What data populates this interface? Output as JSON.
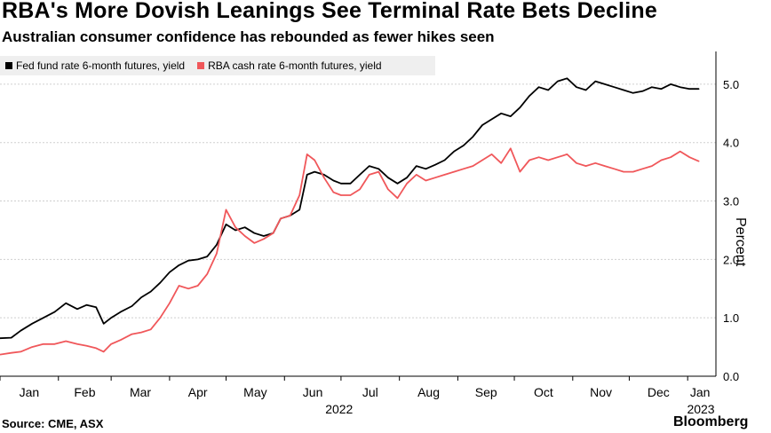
{
  "header": {
    "title": "RBA's More Dovish Leanings See Terminal Rate Bets Decline",
    "subtitle": "Australian consumer confidence has rebounded as fewer hikes seen"
  },
  "footer": {
    "source": "Source: CME, ASX",
    "brand": "Bloomberg"
  },
  "chart_data": {
    "type": "line",
    "title": "RBA's More Dovish Leanings See Terminal Rate Bets Decline",
    "subtitle": "Australian consumer confidence has rebounded as fewer hikes seen",
    "ylabel": "Percent",
    "xlabel": "2022",
    "ylim": [
      0,
      5.5
    ],
    "yticks": [
      0.0,
      1.0,
      2.0,
      3.0,
      4.0,
      5.0
    ],
    "ytick_labels": [
      "0.0",
      "1.0",
      "2.0",
      "3.0",
      "4.0",
      "5.0"
    ],
    "x_domain": [
      "2022-01-01",
      "2023-01-16"
    ],
    "xticks": [
      {
        "date": "2022-01-01",
        "label": "Jan"
      },
      {
        "date": "2022-02-01",
        "label": "Feb"
      },
      {
        "date": "2022-03-01",
        "label": "Mar"
      },
      {
        "date": "2022-04-01",
        "label": "Apr"
      },
      {
        "date": "2022-05-01",
        "label": "May"
      },
      {
        "date": "2022-06-01",
        "label": "Jun"
      },
      {
        "date": "2022-07-01",
        "label": "Jul"
      },
      {
        "date": "2022-08-01",
        "label": "Aug"
      },
      {
        "date": "2022-09-01",
        "label": "Sep"
      },
      {
        "date": "2022-10-01",
        "label": "Oct"
      },
      {
        "date": "2022-11-01",
        "label": "Nov"
      },
      {
        "date": "2022-12-01",
        "label": "Dec"
      },
      {
        "date": "2023-01-01",
        "label": "Jan"
      }
    ],
    "year_labels": [
      "2022",
      "2023"
    ],
    "grid": true,
    "legend_position": "top-left",
    "series": [
      {
        "name": "Fed fund rate 6-month futures, yield",
        "color": "#000000",
        "points": [
          [
            "2022-01-01",
            0.65
          ],
          [
            "2022-01-07",
            0.66
          ],
          [
            "2022-01-12",
            0.78
          ],
          [
            "2022-01-18",
            0.9
          ],
          [
            "2022-01-24",
            1.0
          ],
          [
            "2022-01-30",
            1.1
          ],
          [
            "2022-02-05",
            1.25
          ],
          [
            "2022-02-11",
            1.15
          ],
          [
            "2022-02-16",
            1.22
          ],
          [
            "2022-02-21",
            1.18
          ],
          [
            "2022-02-25",
            0.9
          ],
          [
            "2022-03-01",
            1.0
          ],
          [
            "2022-03-06",
            1.1
          ],
          [
            "2022-03-12",
            1.2
          ],
          [
            "2022-03-17",
            1.35
          ],
          [
            "2022-03-22",
            1.45
          ],
          [
            "2022-03-27",
            1.6
          ],
          [
            "2022-04-01",
            1.78
          ],
          [
            "2022-04-06",
            1.9
          ],
          [
            "2022-04-11",
            1.98
          ],
          [
            "2022-04-16",
            2.0
          ],
          [
            "2022-04-21",
            2.05
          ],
          [
            "2022-04-26",
            2.25
          ],
          [
            "2022-05-01",
            2.6
          ],
          [
            "2022-05-06",
            2.5
          ],
          [
            "2022-05-11",
            2.55
          ],
          [
            "2022-05-16",
            2.45
          ],
          [
            "2022-05-21",
            2.4
          ],
          [
            "2022-05-26",
            2.45
          ],
          [
            "2022-05-30",
            2.7
          ],
          [
            "2022-06-04",
            2.75
          ],
          [
            "2022-06-09",
            2.85
          ],
          [
            "2022-06-13",
            3.45
          ],
          [
            "2022-06-17",
            3.5
          ],
          [
            "2022-06-22",
            3.45
          ],
          [
            "2022-06-27",
            3.35
          ],
          [
            "2022-07-01",
            3.3
          ],
          [
            "2022-07-06",
            3.3
          ],
          [
            "2022-07-11",
            3.45
          ],
          [
            "2022-07-16",
            3.6
          ],
          [
            "2022-07-21",
            3.55
          ],
          [
            "2022-07-26",
            3.4
          ],
          [
            "2022-07-31",
            3.3
          ],
          [
            "2022-08-05",
            3.4
          ],
          [
            "2022-08-10",
            3.6
          ],
          [
            "2022-08-15",
            3.55
          ],
          [
            "2022-08-20",
            3.62
          ],
          [
            "2022-08-25",
            3.7
          ],
          [
            "2022-08-30",
            3.85
          ],
          [
            "2022-09-04",
            3.95
          ],
          [
            "2022-09-09",
            4.1
          ],
          [
            "2022-09-14",
            4.3
          ],
          [
            "2022-09-19",
            4.4
          ],
          [
            "2022-09-24",
            4.5
          ],
          [
            "2022-09-29",
            4.45
          ],
          [
            "2022-10-04",
            4.6
          ],
          [
            "2022-10-09",
            4.8
          ],
          [
            "2022-10-14",
            4.95
          ],
          [
            "2022-10-19",
            4.9
          ],
          [
            "2022-10-24",
            5.05
          ],
          [
            "2022-10-29",
            5.1
          ],
          [
            "2022-11-03",
            4.95
          ],
          [
            "2022-11-08",
            4.9
          ],
          [
            "2022-11-13",
            5.05
          ],
          [
            "2022-11-18",
            5.0
          ],
          [
            "2022-11-23",
            4.95
          ],
          [
            "2022-11-28",
            4.9
          ],
          [
            "2022-12-03",
            4.85
          ],
          [
            "2022-12-08",
            4.88
          ],
          [
            "2022-12-13",
            4.95
          ],
          [
            "2022-12-18",
            4.92
          ],
          [
            "2022-12-23",
            5.0
          ],
          [
            "2022-12-28",
            4.95
          ],
          [
            "2023-01-02",
            4.92
          ],
          [
            "2023-01-07",
            4.92
          ]
        ]
      },
      {
        "name": "RBA cash rate 6-month futures, yield",
        "color": "#f0575a",
        "points": [
          [
            "2022-01-01",
            0.37
          ],
          [
            "2022-01-07",
            0.4
          ],
          [
            "2022-01-12",
            0.42
          ],
          [
            "2022-01-18",
            0.5
          ],
          [
            "2022-01-24",
            0.55
          ],
          [
            "2022-01-30",
            0.55
          ],
          [
            "2022-02-05",
            0.6
          ],
          [
            "2022-02-11",
            0.55
          ],
          [
            "2022-02-16",
            0.52
          ],
          [
            "2022-02-21",
            0.48
          ],
          [
            "2022-02-25",
            0.42
          ],
          [
            "2022-03-01",
            0.55
          ],
          [
            "2022-03-06",
            0.62
          ],
          [
            "2022-03-12",
            0.72
          ],
          [
            "2022-03-17",
            0.75
          ],
          [
            "2022-03-22",
            0.8
          ],
          [
            "2022-03-27",
            1.0
          ],
          [
            "2022-04-01",
            1.25
          ],
          [
            "2022-04-06",
            1.55
          ],
          [
            "2022-04-11",
            1.5
          ],
          [
            "2022-04-16",
            1.55
          ],
          [
            "2022-04-21",
            1.75
          ],
          [
            "2022-04-26",
            2.1
          ],
          [
            "2022-05-01",
            2.85
          ],
          [
            "2022-05-06",
            2.55
          ],
          [
            "2022-05-11",
            2.4
          ],
          [
            "2022-05-16",
            2.28
          ],
          [
            "2022-05-21",
            2.35
          ],
          [
            "2022-05-26",
            2.45
          ],
          [
            "2022-05-30",
            2.7
          ],
          [
            "2022-06-04",
            2.75
          ],
          [
            "2022-06-09",
            3.1
          ],
          [
            "2022-06-13",
            3.8
          ],
          [
            "2022-06-17",
            3.7
          ],
          [
            "2022-06-22",
            3.4
          ],
          [
            "2022-06-27",
            3.15
          ],
          [
            "2022-07-01",
            3.1
          ],
          [
            "2022-07-06",
            3.1
          ],
          [
            "2022-07-11",
            3.2
          ],
          [
            "2022-07-16",
            3.45
          ],
          [
            "2022-07-21",
            3.5
          ],
          [
            "2022-07-26",
            3.2
          ],
          [
            "2022-07-31",
            3.05
          ],
          [
            "2022-08-05",
            3.3
          ],
          [
            "2022-08-10",
            3.45
          ],
          [
            "2022-08-15",
            3.35
          ],
          [
            "2022-08-20",
            3.4
          ],
          [
            "2022-08-25",
            3.45
          ],
          [
            "2022-08-30",
            3.5
          ],
          [
            "2022-09-04",
            3.55
          ],
          [
            "2022-09-09",
            3.6
          ],
          [
            "2022-09-14",
            3.7
          ],
          [
            "2022-09-19",
            3.8
          ],
          [
            "2022-09-24",
            3.65
          ],
          [
            "2022-09-29",
            3.9
          ],
          [
            "2022-10-04",
            3.5
          ],
          [
            "2022-10-09",
            3.7
          ],
          [
            "2022-10-14",
            3.75
          ],
          [
            "2022-10-19",
            3.7
          ],
          [
            "2022-10-24",
            3.75
          ],
          [
            "2022-10-29",
            3.8
          ],
          [
            "2022-11-03",
            3.65
          ],
          [
            "2022-11-08",
            3.6
          ],
          [
            "2022-11-13",
            3.65
          ],
          [
            "2022-11-18",
            3.6
          ],
          [
            "2022-11-23",
            3.55
          ],
          [
            "2022-11-28",
            3.5
          ],
          [
            "2022-12-03",
            3.5
          ],
          [
            "2022-12-08",
            3.55
          ],
          [
            "2022-12-13",
            3.6
          ],
          [
            "2022-12-18",
            3.7
          ],
          [
            "2022-12-23",
            3.75
          ],
          [
            "2022-12-28",
            3.85
          ],
          [
            "2023-01-02",
            3.75
          ],
          [
            "2023-01-07",
            3.68
          ]
        ]
      }
    ]
  }
}
